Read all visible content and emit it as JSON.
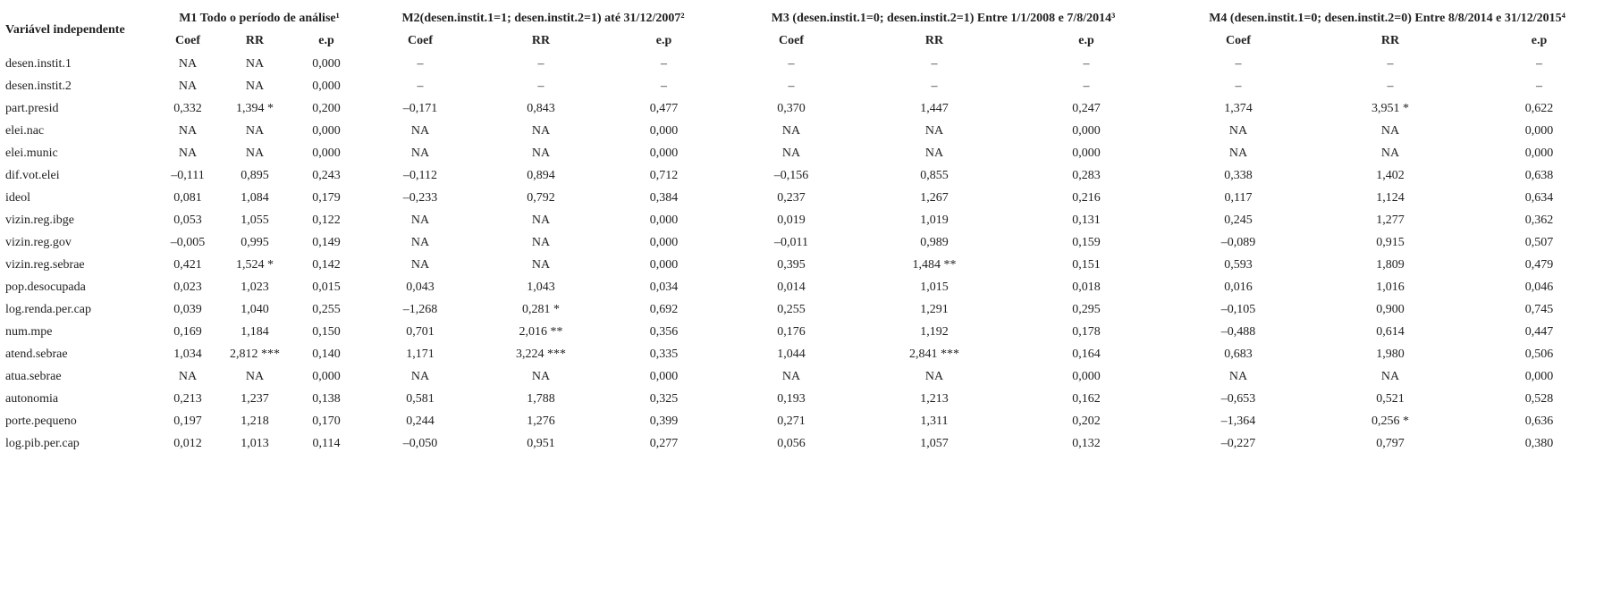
{
  "header": {
    "label": "Variável independente",
    "groups": [
      "M1 Todo o período de análise¹",
      "M2(desen.instit.1=1; desen.instit.2=1) até 31/12/2007²",
      "M3 (desen.instit.1=0; desen.instit.2=1) Entre 1/1/2008 e 7/8/2014³",
      "M4 (desen.instit.1=0; desen.instit.2=0) Entre 8/8/2014 e 31/12/2015⁴"
    ],
    "subheaders": [
      "Coef",
      "RR",
      "e.p",
      "Coef",
      "RR",
      "e.p",
      "Coef",
      "RR",
      "e.p",
      "Coef",
      "RR",
      "e.p"
    ]
  },
  "table": {
    "rows": [
      [
        "desen.instit.1",
        "NA",
        "NA",
        "0,000",
        "–",
        "–",
        "–",
        "–",
        "–",
        "–",
        "–",
        "–",
        "–"
      ],
      [
        "desen.instit.2",
        "NA",
        "NA",
        "0,000",
        "–",
        "–",
        "–",
        "–",
        "–",
        "–",
        "–",
        "–",
        "–"
      ],
      [
        "part.presid",
        "0,332",
        "1,394 *",
        "0,200",
        "–0,171",
        "0,843",
        "0,477",
        "0,370",
        "1,447",
        "0,247",
        "1,374",
        "3,951 *",
        "0,622"
      ],
      [
        "elei.nac",
        "NA",
        "NA",
        "0,000",
        "NA",
        "NA",
        "0,000",
        "NA",
        "NA",
        "0,000",
        "NA",
        "NA",
        "0,000"
      ],
      [
        "elei.munic",
        "NA",
        "NA",
        "0,000",
        "NA",
        "NA",
        "0,000",
        "NA",
        "NA",
        "0,000",
        "NA",
        "NA",
        "0,000"
      ],
      [
        "dif.vot.elei",
        "–0,111",
        "0,895",
        "0,243",
        "–0,112",
        "0,894",
        "0,712",
        "–0,156",
        "0,855",
        "0,283",
        "0,338",
        "1,402",
        "0,638"
      ],
      [
        "ideol",
        "0,081",
        "1,084",
        "0,179",
        "–0,233",
        "0,792",
        "0,384",
        "0,237",
        "1,267",
        "0,216",
        "0,117",
        "1,124",
        "0,634"
      ],
      [
        "vizin.reg.ibge",
        "0,053",
        "1,055",
        "0,122",
        "NA",
        "NA",
        "0,000",
        "0,019",
        "1,019",
        "0,131",
        "0,245",
        "1,277",
        "0,362"
      ],
      [
        "vizin.reg.gov",
        "–0,005",
        "0,995",
        "0,149",
        "NA",
        "NA",
        "0,000",
        "–0,011",
        "0,989",
        "0,159",
        "–0,089",
        "0,915",
        "0,507"
      ],
      [
        "vizin.reg.sebrae",
        "0,421",
        "1,524 *",
        "0,142",
        "NA",
        "NA",
        "0,000",
        "0,395",
        "1,484 **",
        "0,151",
        "0,593",
        "1,809",
        "0,479"
      ],
      [
        "pop.desocupada",
        "0,023",
        "1,023",
        "0,015",
        "0,043",
        "1,043",
        "0,034",
        "0,014",
        "1,015",
        "0,018",
        "0,016",
        "1,016",
        "0,046"
      ],
      [
        "log.renda.per.cap",
        "0,039",
        "1,040",
        "0,255",
        "–1,268",
        "0,281 *",
        "0,692",
        "0,255",
        "1,291",
        "0,295",
        "–0,105",
        "0,900",
        "0,745"
      ],
      [
        "num.mpe",
        "0,169",
        "1,184",
        "0,150",
        "0,701",
        "2,016 **",
        "0,356",
        "0,176",
        "1,192",
        "0,178",
        "–0,488",
        "0,614",
        "0,447"
      ],
      [
        "atend.sebrae",
        "1,034",
        "2,812 ***",
        "0,140",
        "1,171",
        "3,224 ***",
        "0,335",
        "1,044",
        "2,841 ***",
        "0,164",
        "0,683",
        "1,980",
        "0,506"
      ],
      [
        "atua.sebrae",
        "NA",
        "NA",
        "0,000",
        "NA",
        "NA",
        "0,000",
        "NA",
        "NA",
        "0,000",
        "NA",
        "NA",
        "0,000"
      ],
      [
        "autonomia",
        "0,213",
        "1,237",
        "0,138",
        "0,581",
        "1,788",
        "0,325",
        "0,193",
        "1,213",
        "0,162",
        "–0,653",
        "0,521",
        "0,528"
      ],
      [
        "porte.pequeno",
        "0,197",
        "1,218",
        "0,170",
        "0,244",
        "1,276",
        "0,399",
        "0,271",
        "1,311",
        "0,202",
        "–1,364",
        "0,256 *",
        "0,636"
      ],
      [
        "log.pib.per.cap",
        "0,012",
        "1,013",
        "0,114",
        "–0,050",
        "0,951",
        "0,277",
        "0,056",
        "1,057",
        "0,132",
        "–0,227",
        "0,797",
        "0,380"
      ]
    ]
  }
}
